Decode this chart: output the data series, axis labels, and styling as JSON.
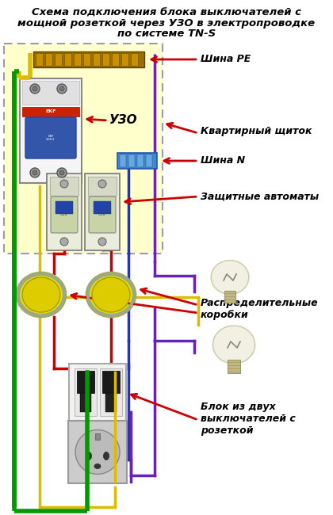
{
  "title1": "Схема подключения блока выключателей с",
  "title2": "мощной розеткой через УЗО в электропроводке",
  "title3": "по системе TN-S",
  "bg": "#ffffff",
  "panel_bg": "#ffffcc",
  "panel_border": "#9999bb",
  "label_shina_pe": "Шина PE",
  "label_kvartirniy": "Квартирный щиток",
  "label_shina_n": "Шина N",
  "label_zasch": "Защитные автоматы",
  "label_uzo": "УЗО",
  "label_rasp": "Распределительные\nкоробки",
  "label_blok": "Блок из двух\nвыключателей с\nрозеткой",
  "red": "#cc0000",
  "blue": "#2233cc",
  "green": "#009900",
  "yellow": "#ddbb00",
  "purple": "#6622bb",
  "lw": 2.5
}
